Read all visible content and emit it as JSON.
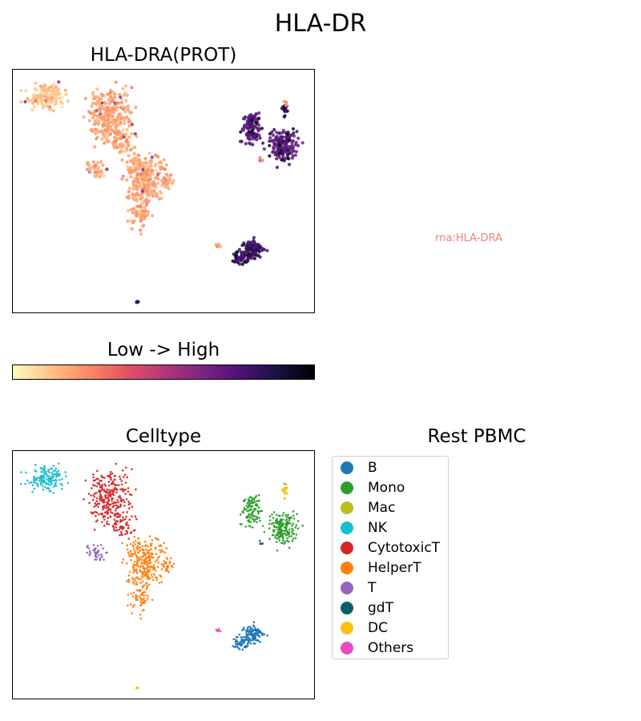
{
  "figure": {
    "title": "HLA-DR"
  },
  "panels": {
    "prot_title": "HLA-DRA(PROT)",
    "missing_note": "rna:HLA-DRA",
    "colorbar_label": "Low  ->  High",
    "celltype_title": "Celltype",
    "legend_title": "Rest PBMC"
  },
  "colors": {
    "colormap": [
      "#fcfdbf",
      "#fec287",
      "#fc8961",
      "#e75263",
      "#b73779",
      "#7e2482",
      "#4f127b",
      "#1c1044",
      "#000004"
    ],
    "missing_note": "#f08080"
  },
  "chart_data": [
    {
      "type": "scatter",
      "name_ref": "HLA-DRA(PROT)",
      "encoding": "color = expression level (0 low .. 1 high)",
      "clusters": [
        {
          "cluster": "NK",
          "level": 0.12
        },
        {
          "cluster": "CytotoxicT",
          "level": 0.2
        },
        {
          "cluster": "HelperT",
          "level": 0.2
        },
        {
          "cluster": "T",
          "level": 0.18
        },
        {
          "cluster": "Mono",
          "level": 0.72
        },
        {
          "cluster": "B",
          "level": 0.8
        },
        {
          "cluster": "DC",
          "level": 0.85
        }
      ],
      "colorbar": {
        "min_label": "Low",
        "max_label": "High"
      }
    },
    {
      "type": "scatter",
      "name_ref": "Celltype",
      "legend": [
        {
          "label": "B",
          "color": "#1f77b4"
        },
        {
          "label": "Mono",
          "color": "#2ca02c"
        },
        {
          "label": "Mac",
          "color": "#bcbd22"
        },
        {
          "label": "NK",
          "color": "#17becf"
        },
        {
          "label": "CytotoxicT",
          "color": "#d62728"
        },
        {
          "label": "HelperT",
          "color": "#ff7f0e"
        },
        {
          "label": "T",
          "color": "#9467bd"
        },
        {
          "label": "gdT",
          "color": "#0b5f6b"
        },
        {
          "label": "DC",
          "color": "#fdc010"
        },
        {
          "label": "Others",
          "color": "#e84bc4"
        }
      ],
      "legend_placement": "right"
    }
  ]
}
